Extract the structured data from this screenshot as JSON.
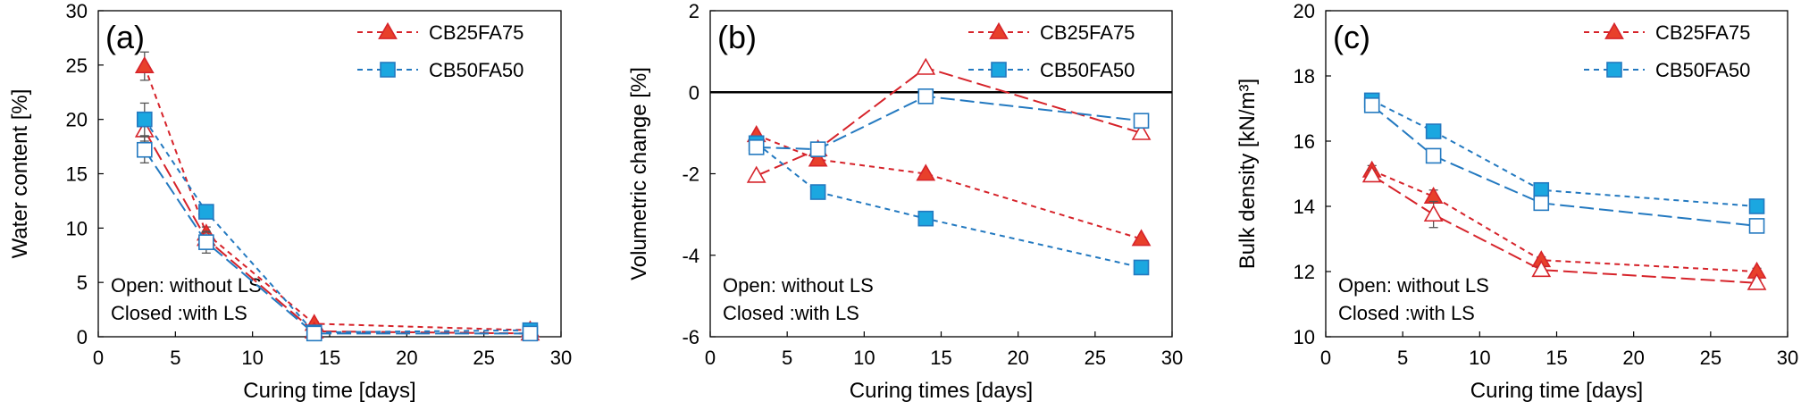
{
  "colors": {
    "cb25": "#e8402b",
    "cb25_line": "#d6232a",
    "cb50": "#1ba7e0",
    "cb50_line": "#2379c0",
    "axis": "#000000",
    "grid": "#d9d9d9"
  },
  "chart_data": [
    {
      "type": "line",
      "panel_label": "(a)",
      "xlabel": "Curing time [days]",
      "ylabel": "Water content [%]",
      "xlim": [
        0,
        30
      ],
      "ylim": [
        0,
        30
      ],
      "xticks": [
        0,
        5,
        10,
        15,
        20,
        25,
        30
      ],
      "yticks": [
        0,
        5,
        10,
        15,
        20,
        25,
        30
      ],
      "note": [
        "Open: without LS",
        "Closed :with LS"
      ],
      "legend": [
        "CB25FA75",
        "CB50FA50"
      ],
      "legend_position": "top-right",
      "zero_line": false,
      "series": [
        {
          "name": "CB25FA75",
          "marker": "triangle",
          "filled": true,
          "x": [
            3,
            7,
            14,
            28
          ],
          "y": [
            24.9,
            9.5,
            1.2,
            0.6
          ],
          "err": [
            1.3,
            0.6,
            0.2,
            0.2
          ]
        },
        {
          "name": "CB25FA75",
          "marker": "triangle",
          "filled": false,
          "x": [
            3,
            7,
            14,
            28
          ],
          "y": [
            19.0,
            9.0,
            0.5,
            0.3
          ],
          "err": [
            1.0,
            0.6,
            0.2,
            0.1
          ]
        },
        {
          "name": "CB50FA50",
          "marker": "square",
          "filled": true,
          "x": [
            3,
            7,
            14,
            28
          ],
          "y": [
            20.0,
            11.5,
            0.4,
            0.6
          ],
          "err": [
            1.5,
            0.5,
            0.2,
            0.2
          ]
        },
        {
          "name": "CB50FA50",
          "marker": "square",
          "filled": false,
          "x": [
            3,
            7,
            14,
            28
          ],
          "y": [
            17.2,
            8.7,
            0.3,
            0.3
          ],
          "err": [
            1.2,
            1.0,
            0.2,
            0.1
          ]
        }
      ]
    },
    {
      "type": "line",
      "panel_label": "(b)",
      "xlabel": "Curing times [days]",
      "ylabel": "Volumetric change [%]",
      "xlim": [
        0,
        30
      ],
      "ylim": [
        -6,
        2
      ],
      "xticks": [
        0,
        5,
        10,
        15,
        20,
        25,
        30
      ],
      "yticks": [
        -6,
        -4,
        -2,
        0,
        2
      ],
      "note": [
        "Open: without LS",
        "Closed :with LS"
      ],
      "legend": [
        "CB25FA75",
        "CB50FA50"
      ],
      "legend_position": "top-right",
      "zero_line": true,
      "series": [
        {
          "name": "CB25FA75",
          "marker": "triangle",
          "filled": true,
          "x": [
            3,
            7,
            14,
            28
          ],
          "y": [
            -1.05,
            -1.65,
            -2.0,
            -3.6
          ],
          "err": [
            0,
            0,
            0,
            0
          ]
        },
        {
          "name": "CB25FA75",
          "marker": "triangle",
          "filled": false,
          "x": [
            3,
            7,
            14,
            28
          ],
          "y": [
            -2.05,
            -1.4,
            0.6,
            -1.0
          ],
          "err": [
            0,
            0,
            0,
            0
          ]
        },
        {
          "name": "CB50FA50",
          "marker": "square",
          "filled": true,
          "x": [
            3,
            7,
            14,
            28
          ],
          "y": [
            -1.25,
            -2.45,
            -3.1,
            -4.3
          ],
          "err": [
            0,
            0,
            0,
            0
          ]
        },
        {
          "name": "CB50FA50",
          "marker": "square",
          "filled": false,
          "x": [
            3,
            7,
            14,
            28
          ],
          "y": [
            -1.35,
            -1.4,
            -0.1,
            -0.7
          ],
          "err": [
            0,
            0,
            0,
            0
          ]
        }
      ]
    },
    {
      "type": "line",
      "panel_label": "(c)",
      "xlabel": "Curing time [days]",
      "ylabel": "Bulk density [kN/m³]",
      "xlim": [
        0,
        30
      ],
      "ylim": [
        10,
        20
      ],
      "xticks": [
        0,
        5,
        10,
        15,
        20,
        25,
        30
      ],
      "yticks": [
        10,
        12,
        14,
        16,
        18,
        20
      ],
      "note": [
        "Open: without LS",
        "Closed :with LS"
      ],
      "legend": [
        "CB25FA75",
        "CB50FA50"
      ],
      "legend_position": "top-right",
      "zero_line": false,
      "series": [
        {
          "name": "CB25FA75",
          "marker": "triangle",
          "filled": true,
          "x": [
            3,
            7,
            14,
            28
          ],
          "y": [
            15.1,
            14.3,
            12.35,
            12.0
          ],
          "err": [
            0.15,
            0.2,
            0.1,
            0.1
          ]
        },
        {
          "name": "CB25FA75",
          "marker": "triangle",
          "filled": false,
          "x": [
            3,
            7,
            14,
            28
          ],
          "y": [
            14.95,
            13.75,
            12.05,
            11.65
          ],
          "err": [
            0.15,
            0.4,
            0.1,
            0.1
          ]
        },
        {
          "name": "CB50FA50",
          "marker": "square",
          "filled": true,
          "x": [
            3,
            7,
            14,
            28
          ],
          "y": [
            17.25,
            16.3,
            14.5,
            14.0
          ],
          "err": [
            0.2,
            0.15,
            0.1,
            0.1
          ]
        },
        {
          "name": "CB50FA50",
          "marker": "square",
          "filled": false,
          "x": [
            3,
            7,
            14,
            28
          ],
          "y": [
            17.1,
            15.55,
            14.1,
            13.4
          ],
          "err": [
            0.2,
            0.15,
            0.1,
            0.1
          ]
        }
      ]
    }
  ]
}
